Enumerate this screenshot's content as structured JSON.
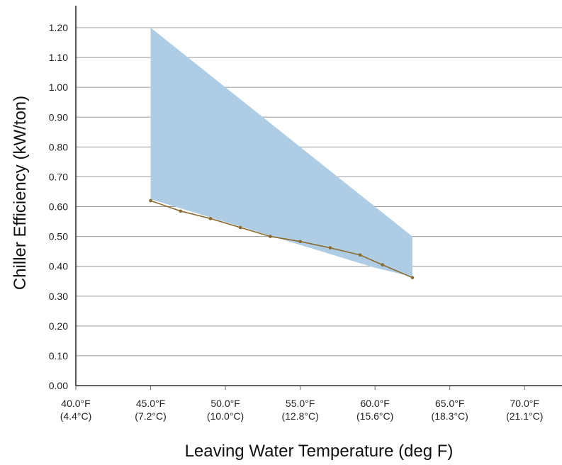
{
  "chart_data": {
    "type": "line",
    "title": "",
    "xlabel": "Leaving Water Temperature (deg F)",
    "ylabel": "Chiller Efficiency (kW/ton)",
    "xlim": [
      40,
      72.5
    ],
    "ylim": [
      0,
      1.2
    ],
    "grid": "horizontal",
    "x_ticks": [
      {
        "value": 40,
        "label_f": "40.0°F",
        "label_c": "(4.4°C)"
      },
      {
        "value": 45,
        "label_f": "45.0°F",
        "label_c": "(7.2°C)"
      },
      {
        "value": 50,
        "label_f": "50.0°F",
        "label_c": "(10.0°C)"
      },
      {
        "value": 55,
        "label_f": "55.0°F",
        "label_c": "(12.8°C)"
      },
      {
        "value": 60,
        "label_f": "60.0°F",
        "label_c": "(15.6°C)"
      },
      {
        "value": 65,
        "label_f": "65.0°F",
        "label_c": "(18.3°C)"
      },
      {
        "value": 70,
        "label_f": "70.0°F",
        "label_c": "(21.1°C)"
      }
    ],
    "y_ticks": [
      {
        "value": 0.0,
        "label": "0.00"
      },
      {
        "value": 0.1,
        "label": "0.10"
      },
      {
        "value": 0.2,
        "label": "0.20"
      },
      {
        "value": 0.3,
        "label": "0.30"
      },
      {
        "value": 0.4,
        "label": "0.40"
      },
      {
        "value": 0.5,
        "label": "0.50"
      },
      {
        "value": 0.6,
        "label": "0.60"
      },
      {
        "value": 0.7,
        "label": "0.70"
      },
      {
        "value": 0.8,
        "label": "0.80"
      },
      {
        "value": 0.9,
        "label": "0.90"
      },
      {
        "value": 1.0,
        "label": "1.00"
      },
      {
        "value": 1.1,
        "label": "1.10"
      },
      {
        "value": 1.2,
        "label": "1.20"
      }
    ],
    "band": {
      "color": "#aecde4",
      "upper": [
        [
          45.0,
          1.2
        ],
        [
          62.5,
          0.5
        ]
      ],
      "lower": [
        [
          45.0,
          0.625
        ],
        [
          60.0,
          0.395
        ],
        [
          62.5,
          0.365
        ]
      ]
    },
    "series": [
      {
        "color": "#8a6a2e",
        "x": [
          45.0,
          47.0,
          49.0,
          51.0,
          53.0,
          55.0,
          57.0,
          59.0,
          60.5,
          62.5
        ],
        "y": [
          0.62,
          0.585,
          0.56,
          0.53,
          0.5,
          0.483,
          0.462,
          0.438,
          0.405,
          0.362
        ]
      }
    ]
  }
}
